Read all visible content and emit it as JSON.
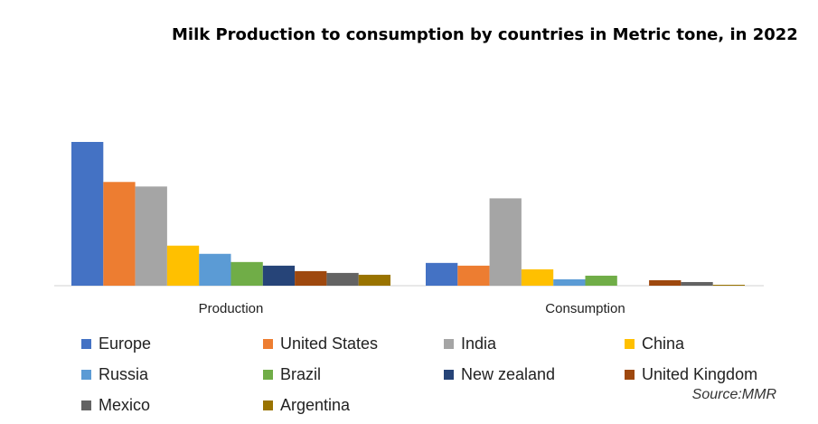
{
  "chart_data": {
    "type": "bar",
    "title": "Milk Production to consumption by countries in Metric tone, in 2022",
    "categories": [
      "Production",
      "Consumption"
    ],
    "ylim": [
      0,
      170
    ],
    "grid": false,
    "legend_position": "bottom",
    "series": [
      {
        "name": "Europe",
        "color": "#4472C4",
        "values": [
          158,
          25
        ]
      },
      {
        "name": "United States",
        "color": "#ED7D31",
        "values": [
          114,
          22
        ]
      },
      {
        "name": "India",
        "color": "#A5A5A5",
        "values": [
          109,
          96
        ]
      },
      {
        "name": "China",
        "color": "#FFC000",
        "values": [
          44,
          18
        ]
      },
      {
        "name": "Russia",
        "color": "#5B9BD5",
        "values": [
          35,
          7
        ]
      },
      {
        "name": "Brazil",
        "color": "#70AD47",
        "values": [
          26,
          11
        ]
      },
      {
        "name": "New zealand",
        "color": "#264478",
        "values": [
          22,
          0
        ]
      },
      {
        "name": "United Kingdom",
        "color": "#9E480E",
        "values": [
          16,
          6
        ]
      },
      {
        "name": "Mexico",
        "color": "#636363",
        "values": [
          14,
          4
        ]
      },
      {
        "name": "Argentina",
        "color": "#997300",
        "values": [
          12,
          1
        ]
      }
    ]
  },
  "source": "Source:MMR"
}
